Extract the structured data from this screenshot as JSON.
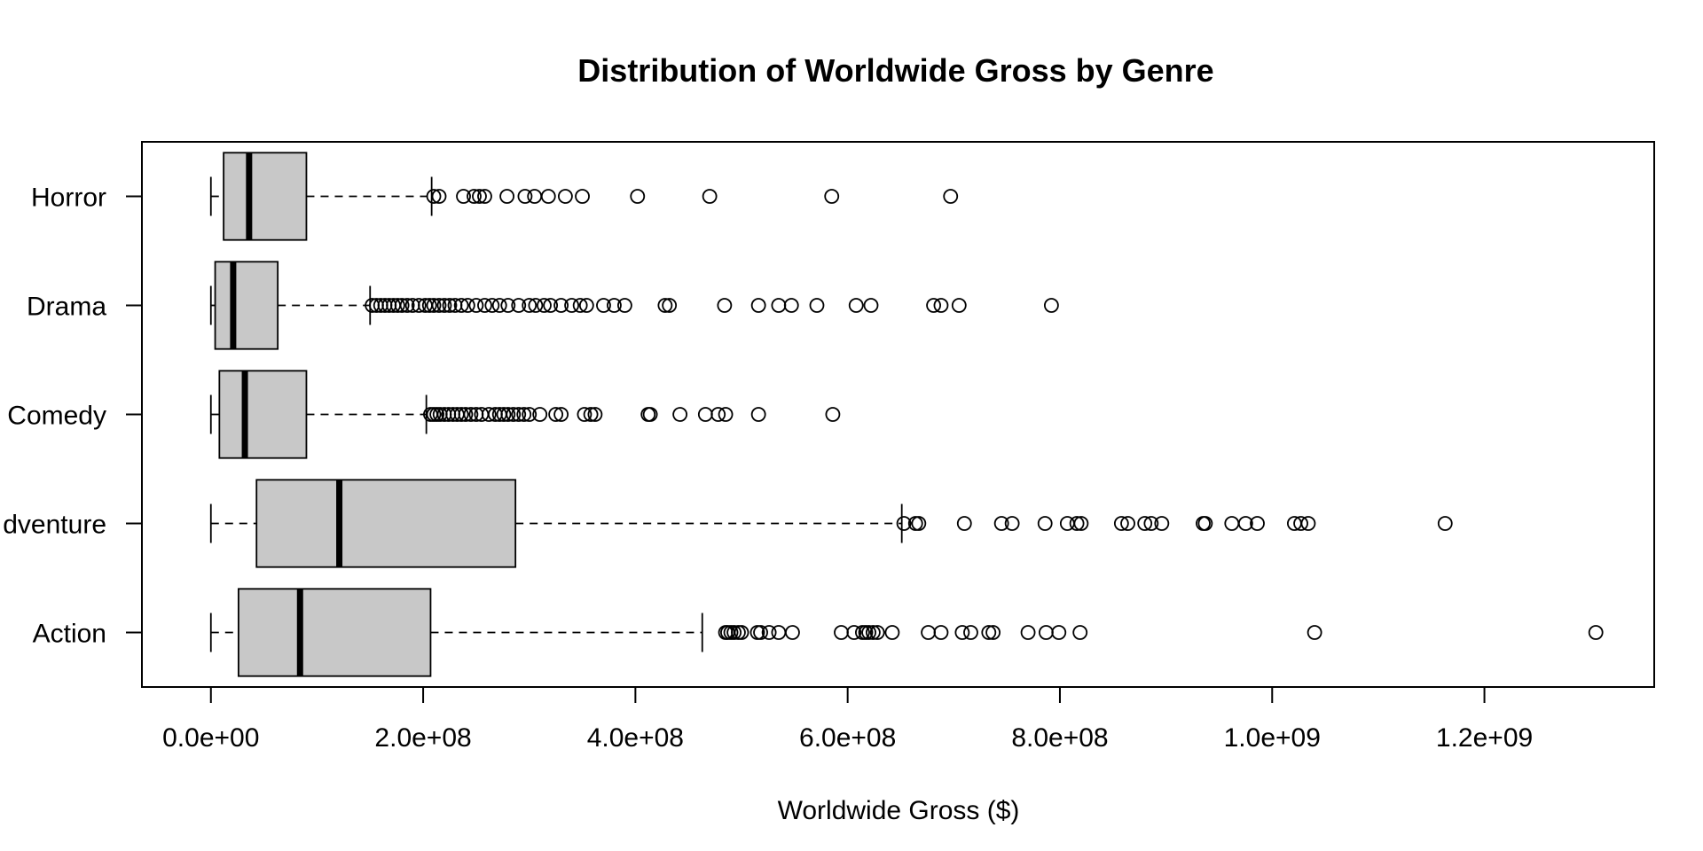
{
  "chart_data": {
    "type": "boxplot",
    "orientation": "horizontal",
    "title": "Distribution of Worldwide Gross by Genre",
    "xlabel": "Worldwide Gross ($)",
    "ylabel": "",
    "xlim": [
      -65000000,
      1360000000
    ],
    "xticks": [
      0,
      200000000,
      400000000,
      600000000,
      800000000,
      1000000000,
      1200000000
    ],
    "xtick_labels": [
      "0.0e+00",
      "2.0e+08",
      "4.0e+08",
      "6.0e+08",
      "8.0e+08",
      "1.0e+09",
      "1.2e+09"
    ],
    "grid": false,
    "box_fill": "#c8c8c8",
    "categories": [
      "Action",
      "Adventure",
      "Comedy",
      "Drama",
      "Horror"
    ],
    "display_labels": [
      "Action",
      "dventure",
      "Comedy",
      "Drama",
      "Horror"
    ],
    "boxes": [
      {
        "name": "Action",
        "whisker_low": 0,
        "q1": 26000000,
        "median": 84000000,
        "q3": 207000000,
        "whisker_high": 463000000,
        "outliers": [
          485000000,
          487000000,
          490000000,
          493000000,
          497000000,
          500000000,
          515000000,
          518000000,
          526000000,
          535000000,
          548000000,
          594000000,
          606000000,
          614000000,
          617000000,
          620000000,
          624000000,
          628000000,
          642000000,
          676000000,
          688000000,
          708000000,
          716000000,
          733000000,
          737000000,
          770000000,
          787000000,
          799000000,
          819000000,
          1040000000,
          1305000000
        ]
      },
      {
        "name": "Adventure",
        "whisker_low": 0,
        "q1": 43000000,
        "median": 121000000,
        "q3": 287000000,
        "whisker_high": 651000000,
        "outliers": [
          653000000,
          664000000,
          667000000,
          710000000,
          745000000,
          755000000,
          786000000,
          807000000,
          816000000,
          820000000,
          858000000,
          864000000,
          880000000,
          886000000,
          896000000,
          935000000,
          937000000,
          962000000,
          975000000,
          986000000,
          1021000000,
          1027000000,
          1034000000,
          1163000000
        ]
      },
      {
        "name": "Comedy",
        "whisker_low": 0,
        "q1": 8000000,
        "median": 32000000,
        "q3": 90000000,
        "whisker_high": 203000000,
        "outliers": [
          207000000,
          210000000,
          213000000,
          216000000,
          220000000,
          224000000,
          228000000,
          232000000,
          236000000,
          240000000,
          245000000,
          250000000,
          255000000,
          262000000,
          268000000,
          272000000,
          276000000,
          280000000,
          285000000,
          290000000,
          295000000,
          300000000,
          310000000,
          325000000,
          330000000,
          352000000,
          358000000,
          362000000,
          412000000,
          414000000,
          442000000,
          466000000,
          478000000,
          485000000,
          516000000,
          586000000
        ]
      },
      {
        "name": "Drama",
        "whisker_low": 0,
        "q1": 4000000,
        "median": 21000000,
        "q3": 63000000,
        "whisker_high": 150000000,
        "outliers": [
          152000000,
          156000000,
          160000000,
          164000000,
          168000000,
          172000000,
          176000000,
          180000000,
          185000000,
          190000000,
          196000000,
          202000000,
          206000000,
          210000000,
          215000000,
          220000000,
          225000000,
          230000000,
          236000000,
          242000000,
          250000000,
          258000000,
          265000000,
          272000000,
          280000000,
          290000000,
          300000000,
          306000000,
          314000000,
          320000000,
          330000000,
          340000000,
          348000000,
          354000000,
          370000000,
          380000000,
          390000000,
          428000000,
          432000000,
          484000000,
          516000000,
          535000000,
          547000000,
          571000000,
          608000000,
          622000000,
          681000000,
          688000000,
          705000000,
          792000000
        ]
      },
      {
        "name": "Horror",
        "whisker_low": 0,
        "q1": 12000000,
        "median": 36000000,
        "q3": 90000000,
        "whisker_high": 208000000,
        "outliers": [
          210000000,
          215000000,
          238000000,
          248000000,
          253000000,
          258000000,
          279000000,
          296000000,
          305000000,
          318000000,
          334000000,
          350000000,
          402000000,
          470000000,
          585000000,
          697000000
        ]
      }
    ]
  }
}
